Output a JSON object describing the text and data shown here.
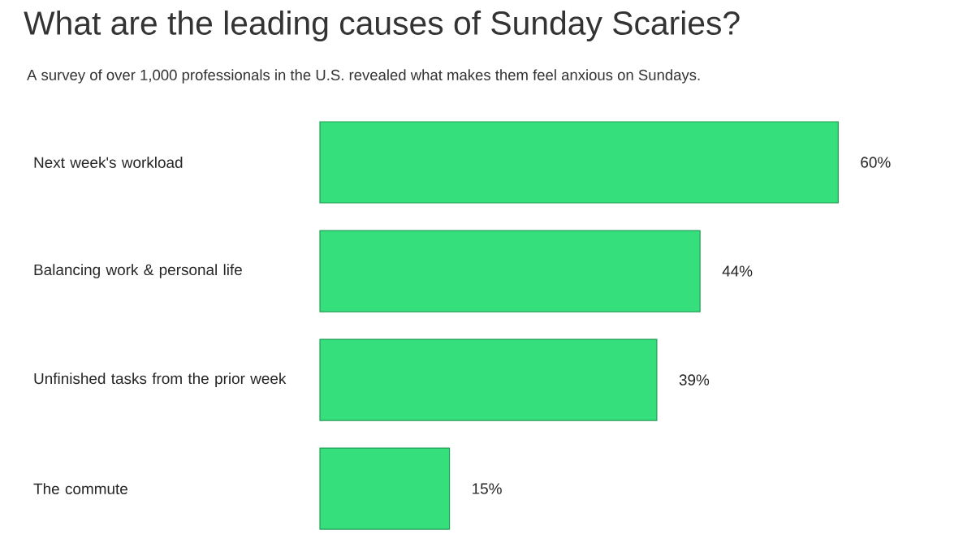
{
  "chart_data": {
    "type": "bar",
    "orientation": "horizontal",
    "title": "What are the leading causes of Sunday Scaries?",
    "subtitle": "A survey of over 1,000 professionals in the U.S. revealed what makes them feel anxious on Sundays.",
    "categories": [
      "Next week's workload",
      "Balancing work & personal life",
      "Unfinished tasks from the prior week",
      "The commute"
    ],
    "values": [
      60,
      44,
      39,
      15
    ],
    "value_labels": [
      "60%",
      "44%",
      "39%",
      "15%"
    ],
    "color": "#35e07c"
  }
}
